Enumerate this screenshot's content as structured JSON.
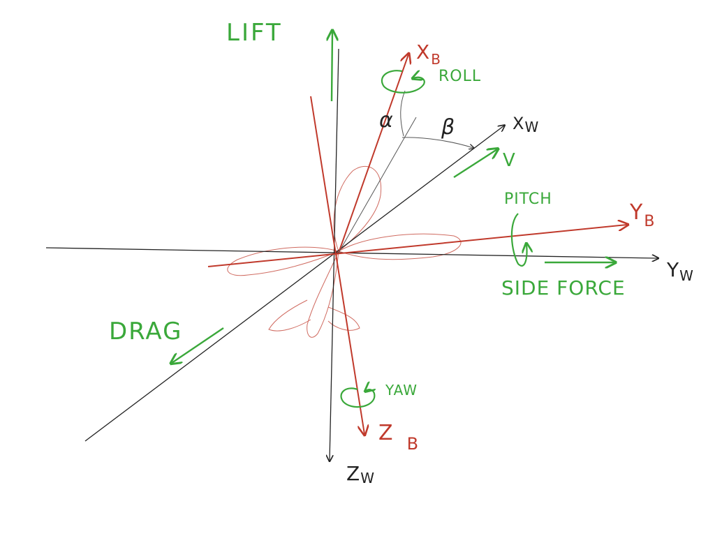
{
  "labels": {
    "lift": "LIFT",
    "xb": "X",
    "xb_sub": "B",
    "roll": "ROLL",
    "alpha": "α",
    "beta": "β",
    "xw": "X",
    "xw_sub": "W",
    "v": "V",
    "pitch": "PITCH",
    "yb": "Y",
    "yb_sub": "B",
    "yw": "Y",
    "yw_sub": "W",
    "side_force": "SIDE FORCE",
    "drag": "DRAG",
    "yaw": "YAW",
    "zb": "Z",
    "zb_sub": "B",
    "zw": "Z",
    "zw_sub": "W"
  },
  "colors": {
    "wind_axes": "#222222",
    "body_axes": "#c0392b",
    "forces": "#3aa83a",
    "aircraft_outline": "#c0392b",
    "angle_arcs": "#333333"
  }
}
